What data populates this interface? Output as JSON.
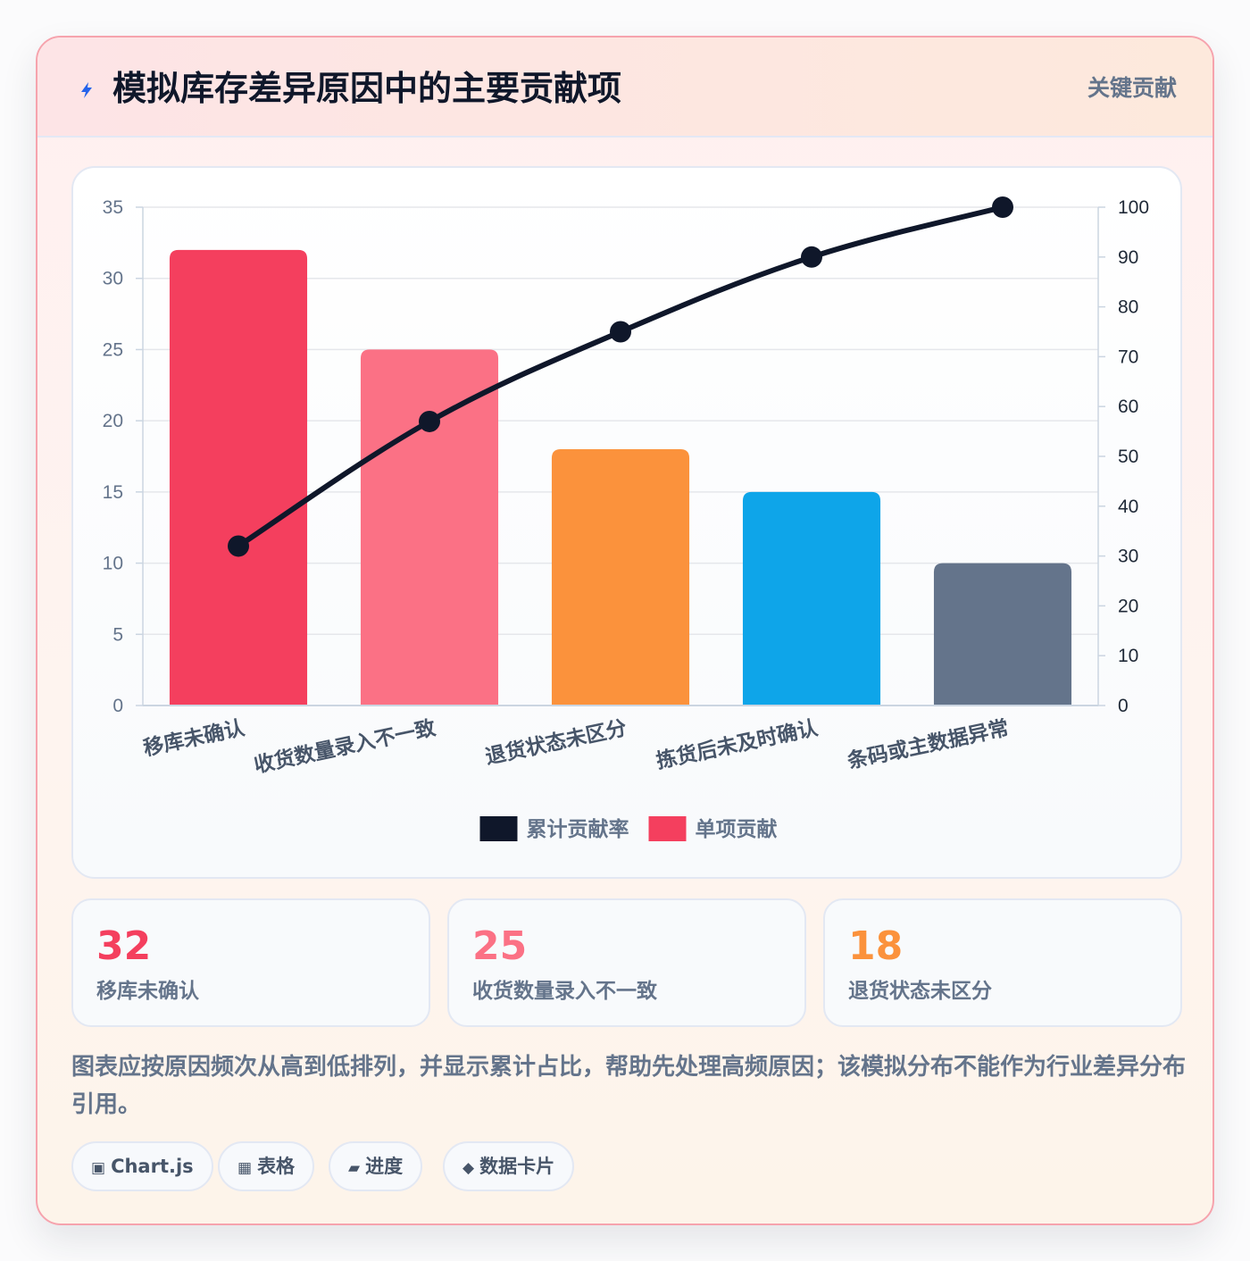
{
  "header": {
    "icon": "lightning-bolt-icon",
    "title": "模拟库存差异原因中的主要贡献项",
    "tag": "关键贡献"
  },
  "chart_data": {
    "type": "bar",
    "categories": [
      "移库未确认",
      "收货数量录入不一致",
      "退货状态未区分",
      "拣货后未及时确认",
      "条码或主数据异常"
    ],
    "series": [
      {
        "name": "单项贡献",
        "type": "bar",
        "axis": "left",
        "values": [
          32,
          25,
          18,
          15,
          10
        ],
        "colors": [
          "#f43f5e",
          "#fb7185",
          "#fb923c",
          "#0ea5e9",
          "#64748b"
        ]
      },
      {
        "name": "累计贡献率",
        "type": "line",
        "axis": "right",
        "values": [
          32,
          57,
          75,
          90,
          100
        ],
        "color": "#0f172a"
      }
    ],
    "legend": [
      {
        "label": "累计贡献率",
        "color": "#0f172a"
      },
      {
        "label": "单项贡献",
        "color": "#f43f5e"
      }
    ],
    "legend_position": "bottom",
    "ylim": [
      0,
      35
    ],
    "yticks": [
      0,
      5,
      10,
      15,
      20,
      25,
      30,
      35
    ],
    "y2lim": [
      0,
      100
    ],
    "y2ticks": [
      0,
      10,
      20,
      30,
      40,
      50,
      60,
      70,
      80,
      90,
      100
    ],
    "grid": true
  },
  "stats": [
    {
      "value": "32",
      "label": "移库未确认",
      "color": "#f43f5e"
    },
    {
      "value": "25",
      "label": "收货数量录入不一致",
      "color": "#fb7185"
    },
    {
      "value": "18",
      "label": "退货状态未区分",
      "color": "#fb923c"
    }
  ],
  "note": "图表应按原因频次从高到低排列，并显示累计占比，帮助先处理高频原因；该模拟分布不能作为行业差异分布引用。",
  "tags": [
    {
      "icon": "chart-icon",
      "glyph": "▣",
      "label": "Chart.js"
    },
    {
      "icon": "table-icon",
      "glyph": "▦",
      "label": "表格"
    },
    {
      "icon": "progress-icon",
      "glyph": "▰",
      "label": "进度"
    },
    {
      "icon": "data-card-icon",
      "glyph": "◆",
      "label": "数据卡片"
    }
  ]
}
